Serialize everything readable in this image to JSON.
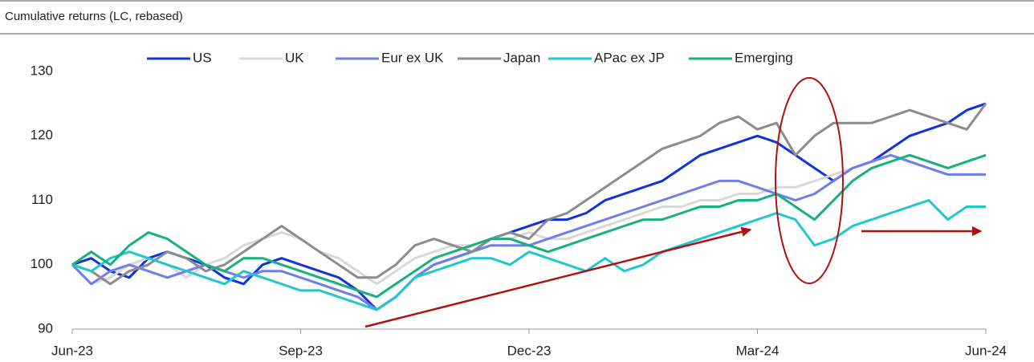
{
  "chart_data": {
    "type": "line",
    "title": "Cumulative returns (LC, rebased)",
    "categories": [
      "Jun-23",
      null,
      null,
      null,
      null,
      null,
      null,
      null,
      null,
      null,
      null,
      null,
      "Sep-23",
      null,
      null,
      null,
      null,
      null,
      null,
      null,
      null,
      null,
      null,
      null,
      "Dec-23",
      null,
      null,
      null,
      null,
      null,
      null,
      null,
      null,
      null,
      null,
      null,
      "Mar-24",
      null,
      null,
      null,
      null,
      null,
      null,
      null,
      null,
      null,
      null,
      null,
      "Jun-24"
    ],
    "series": [
      {
        "name": "US",
        "color": "#1133dd",
        "values": [
          100,
          101,
          99,
          98,
          101,
          102,
          101,
          100,
          98,
          97,
          100,
          101,
          100,
          99,
          98,
          96,
          93,
          95,
          98,
          100,
          101,
          102,
          104,
          105,
          106,
          107,
          107,
          108,
          110,
          111,
          112,
          113,
          115,
          117,
          118,
          119,
          120,
          119,
          117,
          115,
          113,
          115,
          116,
          118,
          120,
          121,
          122,
          124,
          125
        ]
      },
      {
        "name": "UK",
        "color": "#d9d9d9",
        "values": [
          100,
          97,
          98,
          100,
          101,
          100,
          98,
          100,
          101,
          103,
          104,
          105,
          104,
          102,
          101,
          99,
          97,
          99,
          101,
          102,
          103,
          103,
          104,
          104,
          105,
          104,
          104,
          105,
          106,
          107,
          108,
          109,
          109,
          110,
          110,
          111,
          111,
          112,
          112,
          113,
          114,
          115,
          116,
          117,
          116,
          115,
          114,
          114,
          114
        ]
      },
      {
        "name": "Eur ex UK",
        "color": "#6f7fea",
        "values": [
          100,
          97,
          99,
          100,
          99,
          98,
          99,
          100,
          99,
          98,
          99,
          99,
          98,
          97,
          96,
          95,
          93,
          95,
          98,
          100,
          101,
          102,
          103,
          103,
          103,
          104,
          105,
          106,
          107,
          108,
          109,
          110,
          111,
          112,
          113,
          113,
          112,
          111,
          110,
          111,
          113,
          115,
          116,
          117,
          116,
          115,
          114,
          114,
          114
        ]
      },
      {
        "name": "Japan",
        "color": "#8c8c8c",
        "values": [
          100,
          99,
          97,
          99,
          100,
          102,
          101,
          99,
          100,
          102,
          104,
          106,
          104,
          102,
          100,
          98,
          98,
          100,
          103,
          104,
          103,
          102,
          104,
          105,
          104,
          107,
          108,
          110,
          112,
          114,
          116,
          118,
          119,
          120,
          122,
          123,
          121,
          122,
          117,
          120,
          122,
          122,
          122,
          123,
          124,
          123,
          122,
          121,
          125
        ]
      },
      {
        "name": "APac ex JP",
        "color": "#20c8cc",
        "values": [
          100,
          99,
          101,
          102,
          101,
          100,
          99,
          98,
          97,
          99,
          98,
          97,
          96,
          96,
          95,
          94,
          93,
          95,
          98,
          99,
          100,
          101,
          101,
          100,
          102,
          101,
          100,
          99,
          101,
          99,
          100,
          102,
          103,
          104,
          105,
          106,
          107,
          108,
          107,
          103,
          104,
          106,
          107,
          108,
          109,
          110,
          107,
          109,
          109
        ]
      },
      {
        "name": "Emerging",
        "color": "#17b07f",
        "values": [
          100,
          102,
          100,
          103,
          105,
          104,
          102,
          100,
          99,
          101,
          101,
          100,
          99,
          98,
          97,
          96,
          95,
          97,
          99,
          101,
          102,
          103,
          104,
          104,
          103,
          102,
          103,
          104,
          105,
          106,
          107,
          107,
          108,
          109,
          109,
          110,
          110,
          111,
          109,
          107,
          110,
          113,
          115,
          116,
          117,
          116,
          115,
          116,
          117
        ]
      }
    ],
    "ylim": [
      90,
      130
    ],
    "yticks": [
      90,
      100,
      110,
      120,
      130
    ],
    "grid": false,
    "legend": "top"
  }
}
